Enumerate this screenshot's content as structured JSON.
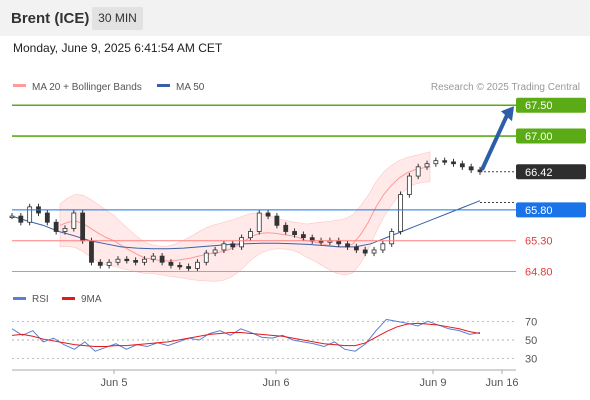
{
  "instrument": "Brent (ICE)",
  "timeframe": "30 MIN",
  "datetime": "Monday, June 9, 2025 6:41:54 AM CET",
  "credit": "Research © 2025 Trading Central",
  "colors": {
    "resistance": "#5aab16",
    "support": "#ff8080",
    "pivot": "#1a73e8",
    "price_tag": "#2e2e2e",
    "bollinger": "#ff9a9a",
    "ma50": "#3a5fa8",
    "rsi": "#5b7fd6",
    "rsi_ma": "#e01b1b",
    "arrow": "#2d5fa8"
  },
  "chart_data": [
    {
      "type": "line",
      "title": "Brent (ICE) 30 MIN",
      "legend": [
        {
          "name": "MA 20 + Bollinger Bands",
          "color": "#ff9a9a"
        },
        {
          "name": "MA 50",
          "color": "#3a5fa8"
        }
      ],
      "y_range": [
        64.5,
        67.65
      ],
      "x_ticks": [
        "Jun 5",
        "Jun 6",
        "Jun 9",
        "Jun 16"
      ],
      "levels": [
        {
          "value": 67.5,
          "label": "67.50",
          "kind": "resistance"
        },
        {
          "value": 67.0,
          "label": "67.00",
          "kind": "resistance"
        },
        {
          "value": 66.42,
          "label": "66.42",
          "kind": "last"
        },
        {
          "value": 65.8,
          "label": "65.80",
          "kind": "pivot"
        },
        {
          "value": 65.3,
          "label": "65.30",
          "kind": "support"
        },
        {
          "value": 64.8,
          "label": "64.80",
          "kind": "support"
        }
      ],
      "price_close": [
        65.7,
        65.6,
        65.85,
        65.75,
        65.6,
        65.45,
        65.5,
        65.75,
        65.3,
        64.95,
        64.9,
        64.95,
        65.0,
        64.98,
        64.95,
        65.0,
        65.05,
        64.95,
        64.9,
        64.88,
        64.85,
        64.95,
        65.1,
        65.15,
        65.25,
        65.2,
        65.35,
        65.45,
        65.75,
        65.7,
        65.55,
        65.45,
        65.4,
        65.35,
        65.3,
        65.28,
        65.3,
        65.25,
        65.2,
        65.15,
        65.1,
        65.15,
        65.25,
        65.45,
        66.05,
        66.35,
        66.5,
        66.55,
        66.6,
        66.58,
        66.55,
        66.5,
        66.45,
        66.42
      ],
      "ma20": [
        65.55,
        65.6,
        65.62,
        65.58,
        65.5,
        65.42,
        65.35,
        65.3,
        65.22,
        65.15,
        65.08,
        65.02,
        65.0,
        64.98,
        64.97,
        64.98,
        65.0,
        65.02,
        65.05,
        65.08,
        65.1,
        65.12,
        65.16,
        65.22,
        65.3,
        65.38,
        65.42,
        65.43,
        65.42,
        65.4,
        65.38,
        65.35,
        65.3,
        65.28,
        65.25,
        65.22,
        65.2,
        65.2,
        65.25,
        65.4,
        65.6,
        65.85,
        66.05,
        66.2,
        66.32,
        66.4,
        66.45,
        66.48,
        66.5
      ],
      "ma50": [
        65.7,
        65.62,
        65.55,
        65.45,
        65.38,
        65.3,
        65.25,
        65.2,
        65.18,
        65.17,
        65.17,
        65.18,
        65.2,
        65.22,
        65.24,
        65.25,
        65.26,
        65.26,
        65.25,
        65.24,
        65.22,
        65.2,
        65.2,
        65.25,
        65.35,
        65.45,
        65.55,
        65.65,
        65.75,
        65.85,
        65.95
      ]
    },
    {
      "type": "line",
      "title": "",
      "legend": [
        {
          "name": "RSI",
          "color": "#5b7fd6"
        },
        {
          "name": "9MA",
          "color": "#e01b1b"
        }
      ],
      "y_range": [
        20,
        80
      ],
      "y_ticks": [
        "70",
        "50",
        "30"
      ],
      "rsi": [
        62,
        55,
        60,
        48,
        52,
        45,
        40,
        48,
        38,
        42,
        46,
        40,
        45,
        43,
        47,
        44,
        48,
        52,
        50,
        57,
        60,
        55,
        62,
        58,
        53,
        52,
        55,
        50,
        48,
        46,
        43,
        48,
        40,
        38,
        46,
        60,
        72,
        70,
        68,
        65,
        70,
        66,
        62,
        60,
        56,
        58
      ],
      "rsi_ma": [
        55,
        56,
        54,
        51,
        49,
        47,
        45,
        44,
        43,
        43,
        44,
        44,
        45,
        46,
        47,
        48,
        50,
        52,
        54,
        56,
        57,
        58,
        58,
        57,
        56,
        55,
        54,
        52,
        50,
        48,
        46,
        45,
        44,
        44,
        47,
        53,
        59,
        64,
        67,
        68,
        67,
        66,
        64,
        62,
        59,
        57
      ]
    }
  ]
}
